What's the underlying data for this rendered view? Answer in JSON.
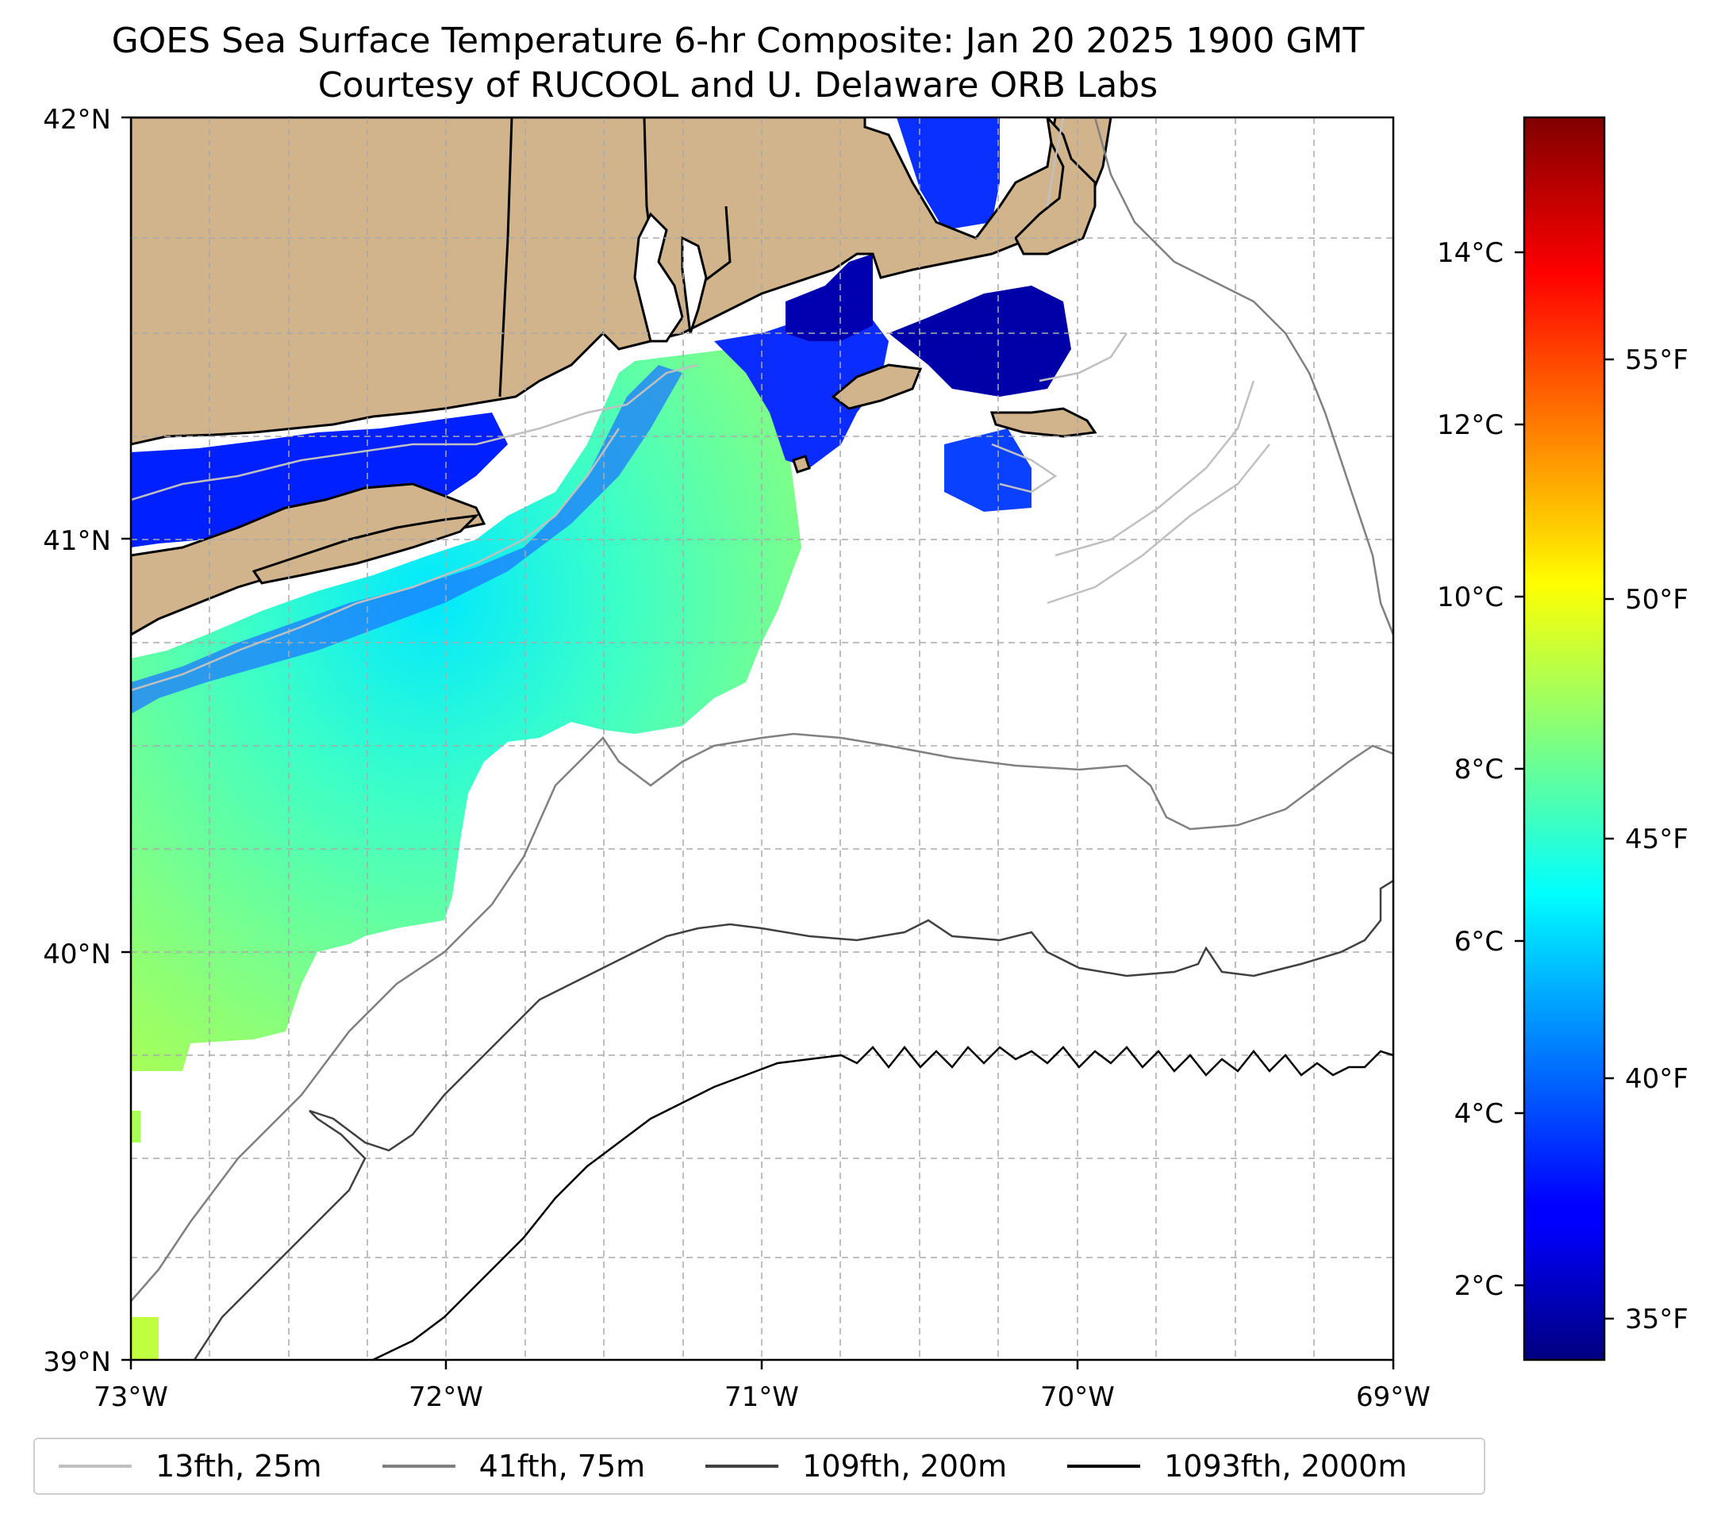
{
  "title": "GOES Sea Surface Temperature 6-hr Composite: Jan 20 2025 1900 GMT",
  "subtitle": "Courtesy of RUCOOL and U. Delaware ORB Labs",
  "map": {
    "lon_ticks": [
      "73°W",
      "72°W",
      "71°W",
      "70°W",
      "69°W"
    ],
    "lat_ticks": [
      "42°N",
      "41°N",
      "40°N",
      "39°N"
    ],
    "lon_range": [
      -73,
      -69
    ],
    "lat_range": [
      39,
      42
    ],
    "grid": true,
    "land_color": "#d2b48c",
    "contour_colors": {
      "c25": "#c0c0c0",
      "c75": "#808080",
      "c200": "#404040",
      "c2000": "#000000"
    }
  },
  "colorbar": {
    "celsius_ticks": [
      "2°C",
      "4°C",
      "6°C",
      "8°C",
      "10°C",
      "12°C",
      "14°C"
    ],
    "fahrenheit_ticks": [
      "35°F",
      "40°F",
      "45°F",
      "50°F",
      "55°F"
    ],
    "colormap": "jet",
    "range_celsius": [
      1.3,
      15.7
    ]
  },
  "legend": {
    "items": [
      {
        "label": "13fth, 25m",
        "color": "#c0c0c0"
      },
      {
        "label": "41fth, 75m",
        "color": "#808080"
      },
      {
        "label": "109fth, 200m",
        "color": "#404040"
      },
      {
        "label": "1093fth, 2000m",
        "color": "#000000"
      }
    ]
  }
}
